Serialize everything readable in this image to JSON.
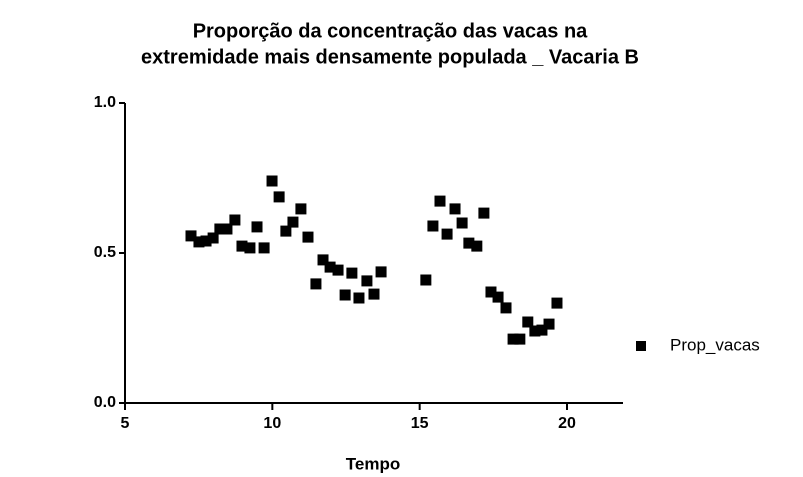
{
  "chart_data": {
    "type": "scatter",
    "title": [
      "Proporção da concentração das vacas na",
      "extremidade mais densamente populada _ Vacaria B"
    ],
    "x_label": "Tempo",
    "xlim": [
      5,
      22
    ],
    "xticks": [
      5,
      10,
      15,
      20
    ],
    "ylim": [
      0,
      1
    ],
    "yticks": [
      {
        "value": 0,
        "label": "0.0"
      },
      {
        "value": 0.5,
        "label": "0.5"
      },
      {
        "value": 1,
        "label": "1.0"
      }
    ],
    "legend": "right",
    "series": [
      {
        "name": "Prop_vacas",
        "color": "#000000",
        "x": [
          7.24,
          7.51,
          7.75,
          7.99,
          8.22,
          8.46,
          8.73,
          8.97,
          9.24,
          9.48,
          9.72,
          9.99,
          10.23,
          10.46,
          10.7,
          10.97,
          11.21,
          11.48,
          11.72,
          11.96,
          12.23,
          12.47,
          12.7,
          12.94,
          13.21,
          13.45,
          13.69,
          15.21,
          15.45,
          15.69,
          15.93,
          16.2,
          16.44,
          16.67,
          16.94,
          17.18,
          17.42,
          17.66,
          17.93,
          18.17,
          18.4,
          18.67,
          18.91,
          19.15,
          19.39,
          19.66
        ],
        "values": [
          0.557,
          0.537,
          0.54,
          0.55,
          0.58,
          0.58,
          0.61,
          0.523,
          0.517,
          0.587,
          0.517,
          0.74,
          0.687,
          0.573,
          0.603,
          0.647,
          0.553,
          0.397,
          0.477,
          0.453,
          0.443,
          0.36,
          0.433,
          0.35,
          0.407,
          0.363,
          0.437,
          0.41,
          0.59,
          0.673,
          0.563,
          0.647,
          0.6,
          0.533,
          0.523,
          0.633,
          0.37,
          0.353,
          0.317,
          0.213,
          0.213,
          0.27,
          0.24,
          0.243,
          0.263,
          0.333
        ]
      }
    ]
  }
}
